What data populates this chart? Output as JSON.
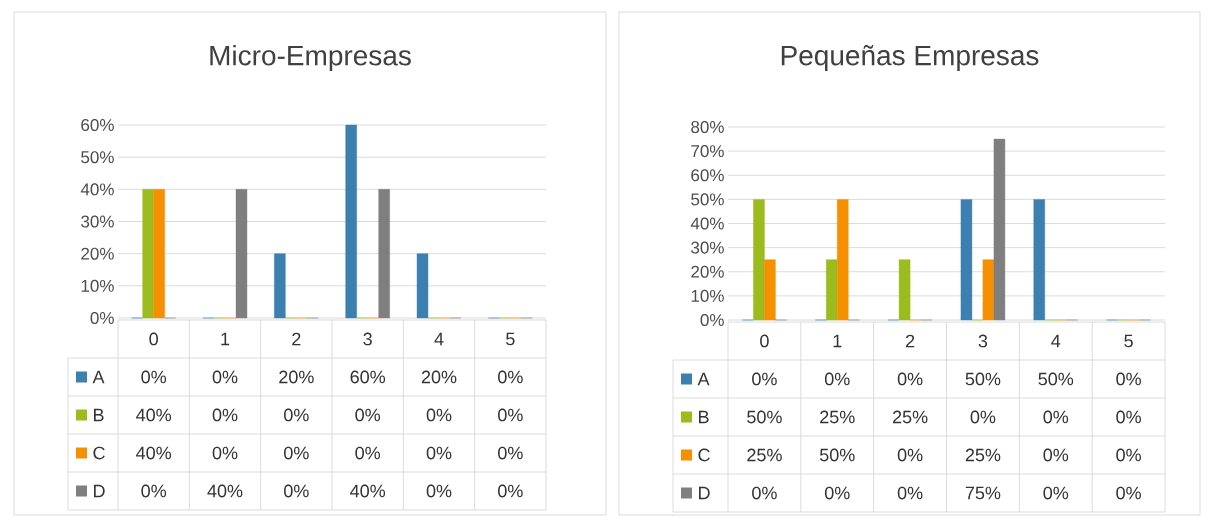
{
  "chart_data": [
    {
      "type": "bar",
      "title": "Micro-Empresas",
      "categories": [
        "0",
        "1",
        "2",
        "3",
        "4",
        "5"
      ],
      "series": [
        {
          "name": "A",
          "color": "#3b80b0",
          "values": [
            0,
            0,
            20,
            60,
            20,
            0
          ],
          "value_labels": [
            "0%",
            "0%",
            "20%",
            "60%",
            "20%",
            "0%"
          ]
        },
        {
          "name": "B",
          "color": "#9bbb1f",
          "values": [
            40,
            0,
            0,
            0,
            0,
            0
          ],
          "value_labels": [
            "40%",
            "0%",
            "0%",
            "0%",
            "0%",
            "0%"
          ]
        },
        {
          "name": "C",
          "color": "#f79000",
          "values": [
            40,
            0,
            0,
            0,
            0,
            0
          ],
          "value_labels": [
            "40%",
            "0%",
            "0%",
            "0%",
            "0%",
            "0%"
          ]
        },
        {
          "name": "D",
          "color": "#7f7f7f",
          "values": [
            0,
            40,
            0,
            40,
            0,
            0
          ],
          "value_labels": [
            "0%",
            "40%",
            "0%",
            "40%",
            "0%",
            "0%"
          ]
        }
      ],
      "ylim": [
        0,
        60
      ],
      "yticks": [
        {
          "value": 0,
          "label": "0%"
        },
        {
          "value": 10,
          "label": "10%"
        },
        {
          "value": 20,
          "label": "20%"
        },
        {
          "value": 30,
          "label": "30%"
        },
        {
          "value": 40,
          "label": "40%"
        },
        {
          "value": 50,
          "label": "50%"
        },
        {
          "value": 60,
          "label": "60%"
        }
      ],
      "grid": "y",
      "legend": "bottom"
    },
    {
      "type": "bar",
      "title": "Pequeñas Empresas",
      "categories": [
        "0",
        "1",
        "2",
        "3",
        "4",
        "5"
      ],
      "series": [
        {
          "name": "A",
          "color": "#3b80b0",
          "values": [
            0,
            0,
            0,
            50,
            50,
            0
          ],
          "value_labels": [
            "0%",
            "0%",
            "0%",
            "50%",
            "50%",
            "0%"
          ]
        },
        {
          "name": "B",
          "color": "#9bbb1f",
          "values": [
            50,
            25,
            25,
            0,
            0,
            0
          ],
          "value_labels": [
            "50%",
            "25%",
            "25%",
            "0%",
            "0%",
            "0%"
          ]
        },
        {
          "name": "C",
          "color": "#f79000",
          "values": [
            25,
            50,
            0,
            25,
            0,
            0
          ],
          "value_labels": [
            "25%",
            "50%",
            "0%",
            "25%",
            "0%",
            "0%"
          ]
        },
        {
          "name": "D",
          "color": "#7f7f7f",
          "values": [
            0,
            0,
            0,
            75,
            0,
            0
          ],
          "value_labels": [
            "0%",
            "0%",
            "0%",
            "75%",
            "0%",
            "0%"
          ]
        }
      ],
      "ylim": [
        0,
        80
      ],
      "yticks": [
        {
          "value": 0,
          "label": "0%"
        },
        {
          "value": 10,
          "label": "10%"
        },
        {
          "value": 20,
          "label": "20%"
        },
        {
          "value": 30,
          "label": "30%"
        },
        {
          "value": 40,
          "label": "40%"
        },
        {
          "value": 50,
          "label": "50%"
        },
        {
          "value": 60,
          "label": "60%"
        },
        {
          "value": 70,
          "label": "70%"
        },
        {
          "value": 80,
          "label": "80%"
        }
      ],
      "grid": "y",
      "legend": "bottom"
    }
  ]
}
